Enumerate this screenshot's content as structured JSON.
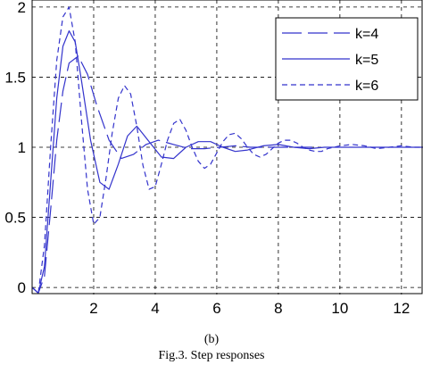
{
  "chart_data": {
    "type": "line",
    "xlabel": "",
    "ylabel": "",
    "xlim": [
      0,
      12.7
    ],
    "ylim": [
      -0.05,
      2.05
    ],
    "xticks": [
      2,
      4,
      6,
      8,
      10,
      12
    ],
    "yticks": [
      0,
      0.5,
      1,
      1.5,
      2
    ],
    "xtick_labels": [
      "2",
      "4",
      "6",
      "8",
      "10",
      "12"
    ],
    "ytick_labels": [
      "0",
      "0.5",
      "1",
      "1.5",
      "2"
    ],
    "grid": true,
    "legend_position": "top-right",
    "series": [
      {
        "name": "k=4",
        "color": "#3333cc",
        "dash": "long-dash",
        "x": [
          0,
          0.2,
          0.4,
          0.6,
          0.8,
          1.0,
          1.2,
          1.5,
          1.8,
          2.1,
          2.5,
          2.9,
          3.3,
          3.7,
          4.1,
          4.6,
          5.1,
          5.6,
          6.1,
          6.6,
          7.1,
          7.6,
          8.1,
          8.6,
          9.1
        ],
        "y": [
          0,
          -0.04,
          0.08,
          0.55,
          1.05,
          1.4,
          1.6,
          1.65,
          1.52,
          1.3,
          1.05,
          0.92,
          0.95,
          1.02,
          1.05,
          1.02,
          0.99,
          0.99,
          1.0,
          1.01,
          1.0,
          1.0,
          1.0,
          1.0,
          1.0
        ]
      },
      {
        "name": "k=5",
        "color": "#3333cc",
        "dash": "solid",
        "x": [
          0,
          0.2,
          0.4,
          0.6,
          0.8,
          1.0,
          1.2,
          1.4,
          1.6,
          1.9,
          2.2,
          2.5,
          2.8,
          3.1,
          3.4,
          3.8,
          4.2,
          4.6,
          5.0,
          5.4,
          5.8,
          6.2,
          6.6,
          7.0,
          7.5,
          8.0,
          8.5,
          9.0,
          9.5,
          10.0,
          11.0,
          12.0,
          12.7
        ],
        "y": [
          0,
          -0.04,
          0.15,
          0.75,
          1.35,
          1.72,
          1.83,
          1.75,
          1.48,
          1.05,
          0.75,
          0.7,
          0.88,
          1.08,
          1.15,
          1.04,
          0.93,
          0.92,
          1.0,
          1.04,
          1.04,
          1.0,
          0.97,
          0.98,
          1.01,
          1.02,
          1.0,
          0.99,
          1.0,
          1.0,
          1.0,
          1.0,
          1.0
        ]
      },
      {
        "name": "k=6",
        "color": "#3333cc",
        "dash": "short-dash",
        "x": [
          0,
          0.2,
          0.4,
          0.6,
          0.8,
          1.0,
          1.2,
          1.4,
          1.6,
          1.8,
          2.0,
          2.2,
          2.4,
          2.6,
          2.8,
          3.0,
          3.2,
          3.4,
          3.6,
          3.8,
          4.0,
          4.2,
          4.4,
          4.6,
          4.8,
          5.0,
          5.2,
          5.4,
          5.6,
          5.8,
          6.0,
          6.2,
          6.4,
          6.6,
          6.8,
          7.0,
          7.2,
          7.4,
          7.6,
          7.8,
          8.0,
          8.2,
          8.4,
          8.6,
          8.8,
          9.0,
          9.2,
          9.4,
          9.6,
          9.8,
          10.0,
          10.4,
          10.8,
          11.2,
          11.6,
          12.0,
          12.4,
          12.7
        ],
        "y": [
          0,
          -0.04,
          0.3,
          1.0,
          1.62,
          1.93,
          2.0,
          1.75,
          1.2,
          0.7,
          0.45,
          0.5,
          0.78,
          1.1,
          1.35,
          1.44,
          1.38,
          1.15,
          0.87,
          0.7,
          0.72,
          0.88,
          1.05,
          1.17,
          1.2,
          1.12,
          1.0,
          0.9,
          0.85,
          0.88,
          0.96,
          1.04,
          1.09,
          1.1,
          1.06,
          1.0,
          0.95,
          0.93,
          0.95,
          0.99,
          1.03,
          1.05,
          1.05,
          1.03,
          1.0,
          0.98,
          0.97,
          0.97,
          0.99,
          1.0,
          1.01,
          1.02,
          1.01,
          0.99,
          1.0,
          1.01,
          1.0,
          1.0
        ]
      }
    ]
  },
  "captions": {
    "sub": "(b)",
    "figure": "Fig.3. Step responses"
  }
}
